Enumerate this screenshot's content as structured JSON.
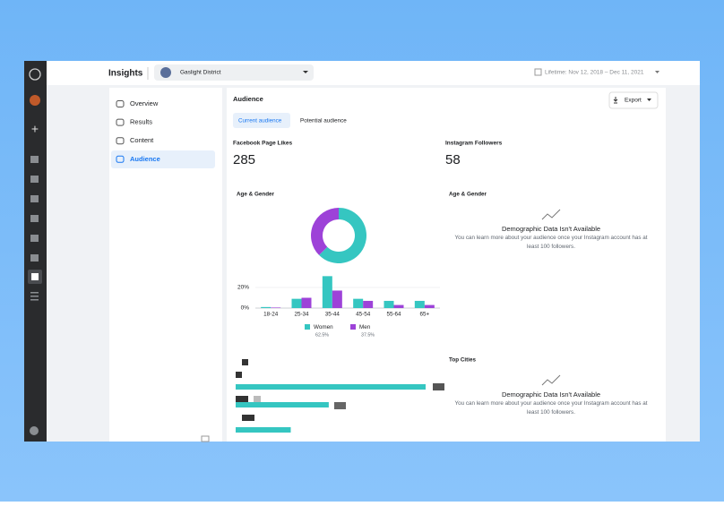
{
  "header": {
    "title": "Insights",
    "page_name": "Gaslight District",
    "date_range": "Lifetime: Nov 12, 2018 – Dec 11, 2021"
  },
  "nav": [
    "Overview",
    "Results",
    "Content",
    "Audience"
  ],
  "panel": {
    "title": "Audience",
    "export": "Export",
    "tabs": [
      "Current audience",
      "Potential audience"
    ],
    "stats": [
      {
        "label": "Facebook Page Likes",
        "value": 285
      },
      {
        "label": "Instagram Followers",
        "value": 58
      }
    ],
    "sections": {
      "fb_age_gender": "Age & Gender",
      "ig_age_gender": "Age & Gender",
      "ig_top_cities": "Top Cities"
    },
    "unavailable": [
      {
        "title": "Demographic Data Isn't Available",
        "message": "You can learn more about your audience once your Instagram account has at least 100 followers."
      },
      {
        "title": "Demographic Data Isn't Available",
        "message": "You can learn more about your audience once your Instagram account has at least 100 followers."
      }
    ]
  },
  "chart_data": [
    {
      "type": "pie",
      "donut": true,
      "categories": [
        "Women",
        "Men"
      ],
      "values": [
        62.5,
        37.5
      ],
      "value_labels": [
        "62.5%",
        "37.5%"
      ],
      "colors": [
        "#35c6c1",
        "#9d42d8"
      ]
    },
    {
      "type": "bar",
      "categories": [
        "18-24",
        "25-34",
        "35-44",
        "45-54",
        "55-64",
        "65+"
      ],
      "series": [
        {
          "color": "#35c6c1",
          "values": [
            1,
            9,
            31,
            9,
            7,
            7
          ]
        },
        {
          "color": "#9d42d8",
          "values": [
            0.5,
            10,
            17,
            7,
            3,
            3
          ]
        }
      ],
      "ylim": [
        0,
        35
      ],
      "yticks": [
        {
          "value": 0,
          "label": "0%"
        },
        {
          "value": 20,
          "label": "20%"
        }
      ],
      "grid": true
    },
    {
      "type": "hbar",
      "categories": [
        null,
        null,
        null
      ],
      "values": [
        100,
        49,
        29
      ],
      "xlim": [
        0,
        100
      ],
      "color": "#35c6c1"
    }
  ]
}
